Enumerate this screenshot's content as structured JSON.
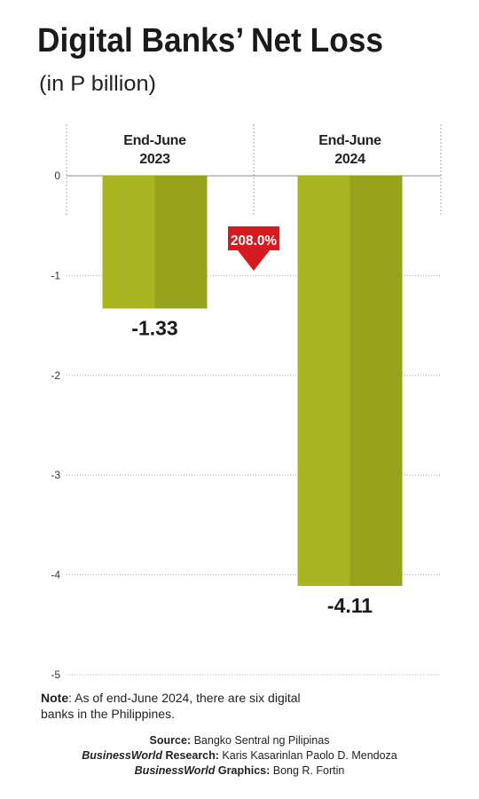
{
  "chart_data": {
    "type": "bar",
    "title": "Digital Banks’ Net Loss",
    "subtitle": "(in P billion)",
    "categories": [
      "End-June 2023",
      "End-June 2024"
    ],
    "values": [
      -1.33,
      -4.11
    ],
    "color": "#a9b520",
    "ylim": [
      -5,
      0
    ],
    "yticks": [
      0,
      -1,
      -2,
      -3,
      -4,
      -5
    ],
    "grid": true,
    "annotation": {
      "text": "208.0%",
      "color": "#d71920"
    },
    "note": {
      "label": "Note",
      "text": ": As of end-June 2024, there are six digital banks in the Philippines."
    },
    "credits": [
      {
        "label": "Source:",
        "text": "Bangko Sentral ng Pilipinas"
      },
      {
        "brand": "BusinessWorld",
        "label": "Research:",
        "text": "Karis Kasarinlan Paolo D. Mendoza"
      },
      {
        "brand": "BusinessWorld",
        "label": "Graphics:",
        "text": "Bong R. Fortin"
      }
    ]
  }
}
